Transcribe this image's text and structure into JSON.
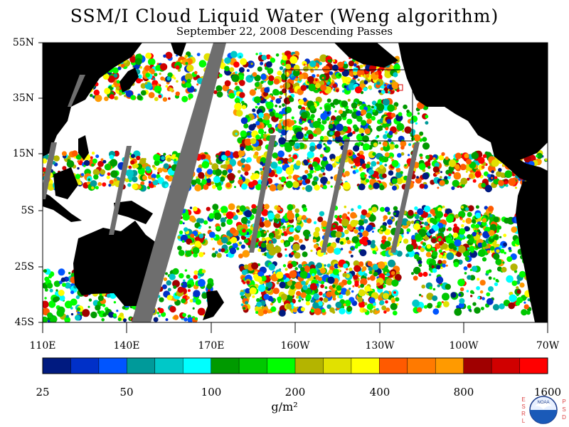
{
  "title": "SSM/I Cloud Liquid Water (Weng algorithm)",
  "subtitle": "September 22, 2008  Descending Passes",
  "lat_labels": [
    "55N",
    "35N",
    "15N",
    "5S",
    "25S",
    "45S"
  ],
  "lon_labels": [
    "110E",
    "140E",
    "170E",
    "160W",
    "130W",
    "100W",
    "70W"
  ],
  "colorbar": {
    "tick_labels": [
      "25",
      "50",
      "100",
      "200",
      "400",
      "800",
      "1600"
    ],
    "colors": [
      "#001a80",
      "#0030c8",
      "#0055ff",
      "#009a9a",
      "#00c8c8",
      "#00ffff",
      "#009a00",
      "#00c800",
      "#00ff00",
      "#b4b400",
      "#e1e100",
      "#ffff00",
      "#ff5a00",
      "#ff7a00",
      "#ff9a00",
      "#a00000",
      "#d00000",
      "#ff0000"
    ]
  },
  "units": "g/m²",
  "logo": {
    "left_letters": "ESRL",
    "right_letters": "PSD",
    "seal_text": "NOAA"
  }
}
